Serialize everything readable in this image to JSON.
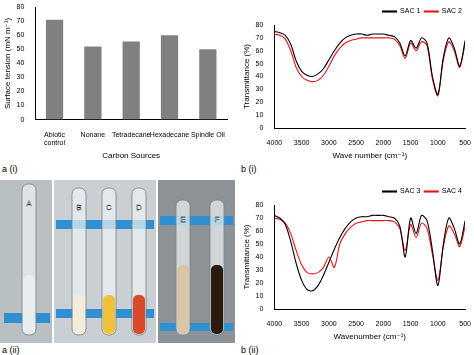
{
  "chart_data": [
    {
      "type": "bar",
      "annotations": [
        "a (i)"
      ],
      "x_label": "Carbon Sources",
      "y_label": "Surface tension (mN m⁻¹)",
      "categories": [
        "Abiotic control",
        "Nonane",
        "Tetradecane",
        "Hexadecane",
        "Spindle Oil"
      ],
      "values": [
        71,
        52,
        55.5,
        60,
        50
      ],
      "color": "#808080",
      "ylim": [
        0,
        80
      ],
      "yticks": [
        0,
        10,
        20,
        30,
        40,
        50,
        60,
        70,
        80
      ],
      "grid": false
    },
    {
      "type": "line",
      "annotations": [
        "b (i)"
      ],
      "x_label": "Wave number (cm⁻¹)",
      "y_label": "Transmittance (%)",
      "x": [
        4000,
        3900,
        3800,
        3700,
        3600,
        3500,
        3400,
        3300,
        3200,
        3100,
        3000,
        2900,
        2800,
        2700,
        2600,
        2500,
        2400,
        2300,
        2200,
        2100,
        2000,
        1900,
        1800,
        1700,
        1600,
        1500,
        1400,
        1300,
        1200,
        1100,
        1000,
        900,
        800,
        700,
        600,
        500
      ],
      "series": [
        {
          "name": "SAC 1",
          "color": "#000000",
          "values": [
            75,
            74,
            72,
            65,
            52,
            44,
            41,
            40,
            42,
            46,
            53,
            60,
            66,
            70,
            72,
            73,
            73,
            72,
            73,
            73,
            73,
            72,
            71,
            66,
            56,
            68,
            62,
            70,
            66,
            40,
            26,
            55,
            70,
            62,
            48,
            68
          ]
        },
        {
          "name": "SAC 2",
          "color": "#e8141b",
          "values": [
            73,
            72,
            69,
            60,
            47,
            40,
            37,
            36,
            37,
            41,
            48,
            56,
            62,
            66,
            68,
            69,
            70,
            70,
            70,
            70,
            70,
            70,
            69,
            64,
            54,
            66,
            60,
            67,
            64,
            38,
            25,
            53,
            67,
            60,
            47,
            66
          ]
        }
      ],
      "xlim": [
        4000,
        500
      ],
      "xticks": [
        4000,
        3500,
        3000,
        2500,
        2000,
        1500,
        1000,
        500
      ],
      "ylim": [
        0,
        80
      ],
      "yticks": [
        0,
        10,
        20,
        30,
        40,
        50,
        60,
        70,
        80
      ],
      "grid": false,
      "legend": "top-right"
    },
    {
      "type": "line",
      "annotations": [
        "b (ii)"
      ],
      "x_label": "Wavenumber (cm⁻¹)",
      "y_label": "Transmittance (%)",
      "x": [
        4000,
        3900,
        3800,
        3700,
        3600,
        3500,
        3400,
        3300,
        3200,
        3100,
        3000,
        2900,
        2800,
        2700,
        2600,
        2500,
        2400,
        2300,
        2200,
        2100,
        2000,
        1900,
        1800,
        1700,
        1600,
        1500,
        1400,
        1300,
        1200,
        1100,
        1000,
        900,
        800,
        700,
        600,
        500
      ],
      "series": [
        {
          "name": "SAC 3",
          "color": "#000000",
          "values": [
            72,
            70,
            65,
            52,
            35,
            22,
            15,
            14,
            18,
            26,
            36,
            46,
            55,
            62,
            67,
            70,
            71,
            71,
            72,
            72,
            72,
            71,
            70,
            64,
            40,
            70,
            58,
            72,
            68,
            45,
            18,
            50,
            70,
            62,
            50,
            68
          ]
        },
        {
          "name": "SAC 4",
          "color": "#e8141b",
          "values": [
            70,
            69,
            66,
            58,
            45,
            34,
            28,
            27,
            28,
            32,
            40,
            32,
            50,
            58,
            63,
            66,
            67,
            68,
            68,
            68,
            68,
            68,
            67,
            62,
            45,
            65,
            55,
            66,
            62,
            42,
            22,
            48,
            64,
            58,
            48,
            64
          ]
        }
      ],
      "xlim": [
        4000,
        500
      ],
      "xticks": [
        4000,
        3500,
        3000,
        2500,
        2000,
        1500,
        1000,
        500
      ],
      "ylim": [
        0,
        80
      ],
      "yticks": [
        0,
        10,
        20,
        30,
        40,
        50,
        60,
        70,
        80
      ],
      "grid": false,
      "legend": "top-right"
    }
  ],
  "photo": {
    "annotations": [
      "a (ii)"
    ],
    "tubes": [
      "A",
      "B",
      "C",
      "D",
      "E",
      "F"
    ]
  }
}
